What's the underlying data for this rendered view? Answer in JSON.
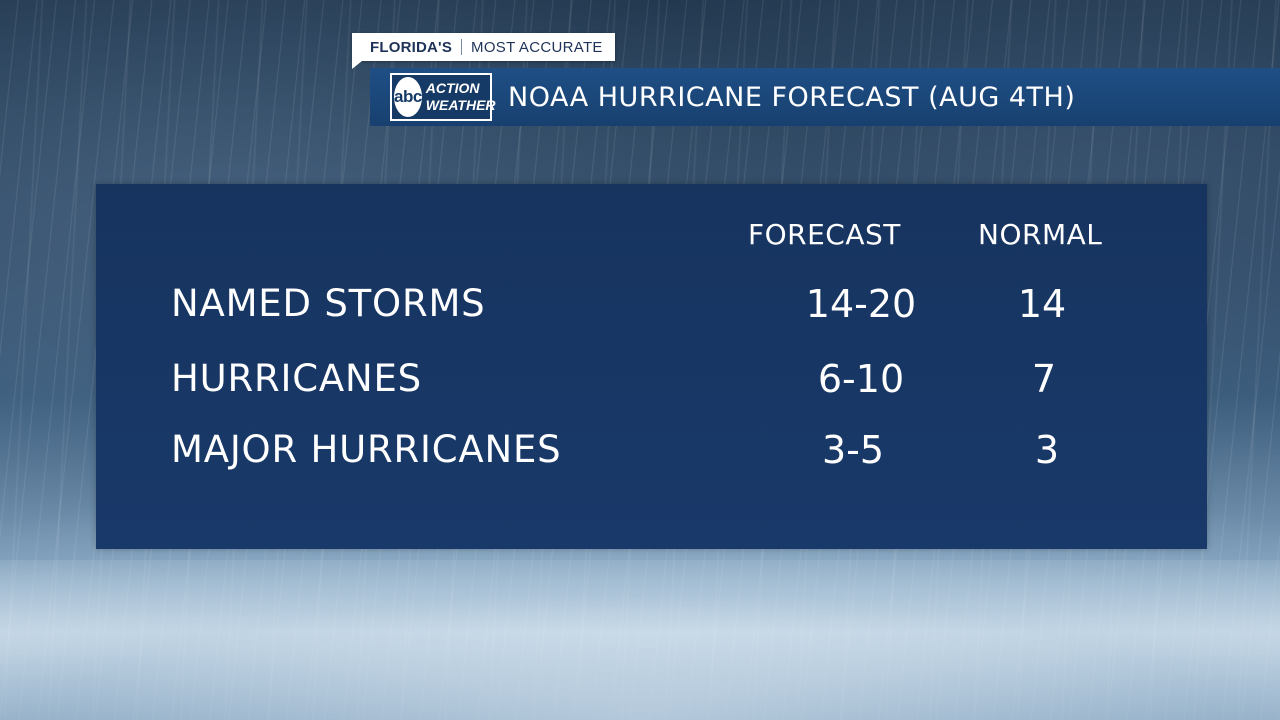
{
  "header": {
    "tag_left": "FLORIDA'S",
    "tag_right": "MOST ACCURATE",
    "logo_mark": "abc",
    "logo_line1": "ACTION",
    "logo_line2": "WEATHER",
    "title": "NOAA HURRICANE FORECAST (AUG 4TH)"
  },
  "table": {
    "columns": [
      "FORECAST",
      "NORMAL"
    ],
    "rows": [
      {
        "label": "NAMED STORMS",
        "forecast": "14-20",
        "normal": "14"
      },
      {
        "label": "HURRICANES",
        "forecast": "6-10",
        "normal": "7"
      },
      {
        "label": "MAJOR HURRICANES",
        "forecast": "3-5",
        "normal": "3"
      }
    ]
  },
  "colors": {
    "title_bar": "#1f4f86",
    "panel": "#17345f",
    "text": "#ffffff"
  }
}
